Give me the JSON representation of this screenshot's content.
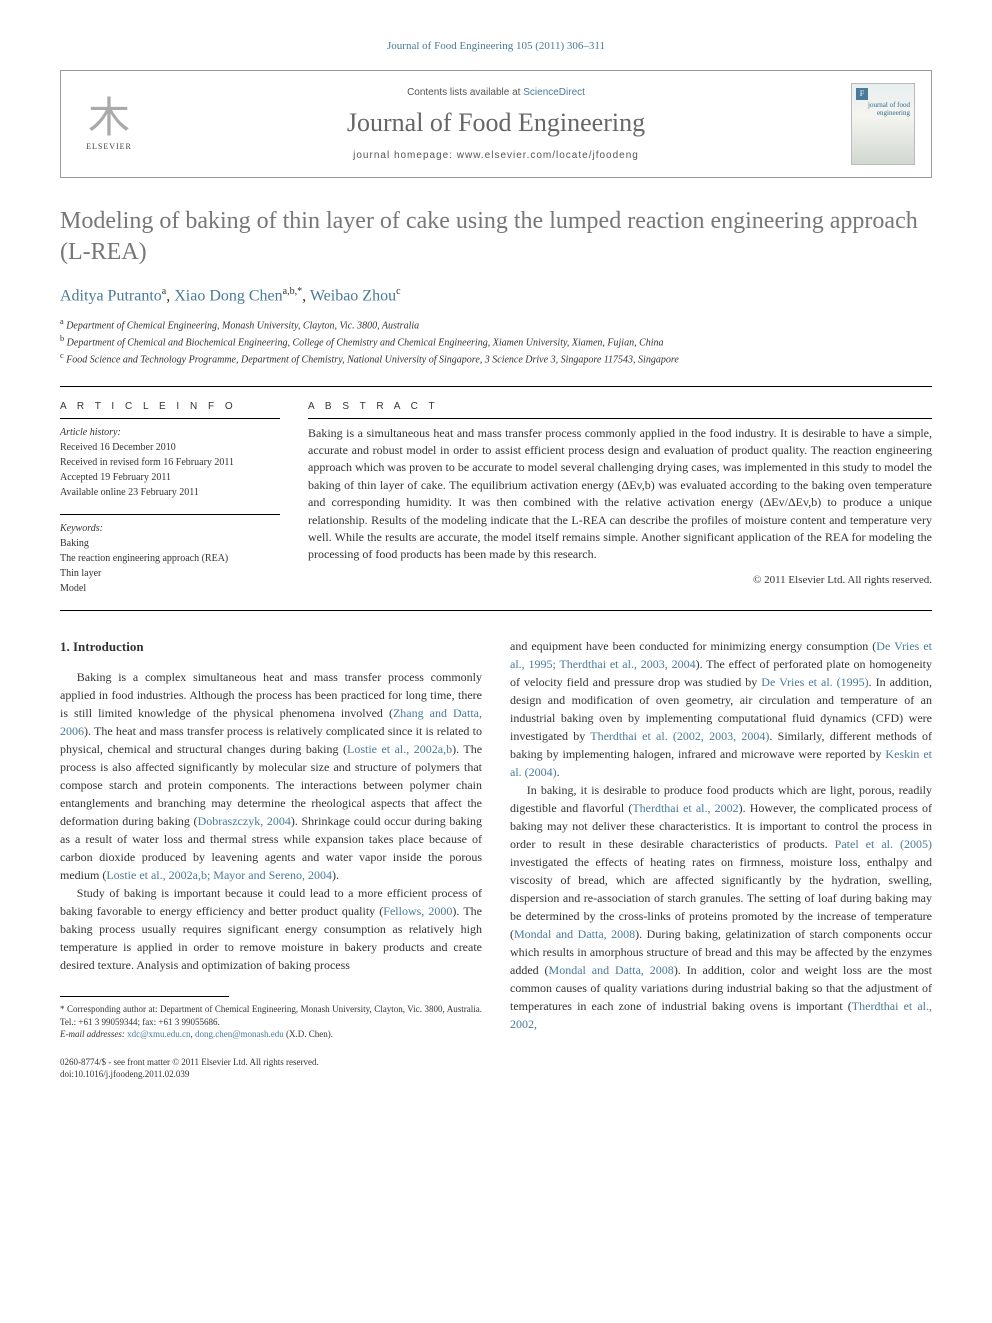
{
  "colors": {
    "link": "#4a7a9a",
    "title_gray": "#777777",
    "text": "#333333",
    "rule": "#000000",
    "box_border": "#999999",
    "background": "#ffffff"
  },
  "typography": {
    "body_font": "Georgia, 'Times New Roman', serif",
    "sans_font": "Arial, sans-serif",
    "title_fontsize": 24,
    "journal_name_fontsize": 26,
    "body_fontsize": 12,
    "small_fontsize": 10,
    "tiny_fontsize": 9
  },
  "header": {
    "citation": "Journal of Food Engineering 105 (2011) 306–311"
  },
  "journal_box": {
    "publisher": "ELSEVIER",
    "contents_prefix": "Contents lists available at ",
    "contents_link": "ScienceDirect",
    "journal_name": "Journal of Food Engineering",
    "homepage_prefix": "journal homepage: ",
    "homepage_url": "www.elsevier.com/locate/jfoodeng",
    "cover_badge": "F",
    "cover_title": "journal of food engineering"
  },
  "article": {
    "title": "Modeling of baking of thin layer of cake using the lumped reaction engineering approach (L-REA)",
    "authors": [
      {
        "name": "Aditya Putranto",
        "affil": "a"
      },
      {
        "name": "Xiao Dong Chen",
        "affil": "a,b,",
        "corresponding": true
      },
      {
        "name": "Weibao Zhou",
        "affil": "c"
      }
    ],
    "affiliations": [
      {
        "marker": "a",
        "text": "Department of Chemical Engineering, Monash University, Clayton, Vic. 3800, Australia"
      },
      {
        "marker": "b",
        "text": "Department of Chemical and Biochemical Engineering, College of Chemistry and Chemical Engineering, Xiamen University, Xiamen, Fujian, China"
      },
      {
        "marker": "c",
        "text": "Food Science and Technology Programme, Department of Chemistry, National University of Singapore, 3 Science Drive 3, Singapore 117543, Singapore"
      }
    ]
  },
  "info": {
    "info_heading": "A R T I C L E   I N F O",
    "abstract_heading": "A B S T R A C T",
    "history_label": "Article history:",
    "history": [
      "Received 16 December 2010",
      "Received in revised form 16 February 2011",
      "Accepted 19 February 2011",
      "Available online 23 February 2011"
    ],
    "keywords_label": "Keywords:",
    "keywords": [
      "Baking",
      "The reaction engineering approach (REA)",
      "Thin layer",
      "Model"
    ]
  },
  "abstract": {
    "text": "Baking is a simultaneous heat and mass transfer process commonly applied in the food industry. It is desirable to have a simple, accurate and robust model in order to assist efficient process design and evaluation of product quality. The reaction engineering approach which was proven to be accurate to model several challenging drying cases, was implemented in this study to model the baking of thin layer of cake. The equilibrium activation energy (ΔEv,b) was evaluated according to the baking oven temperature and corresponding humidity. It was then combined with the relative activation energy (ΔEv/ΔEv,b) to produce a unique relationship. Results of the modeling indicate that the L-REA can describe the profiles of moisture content and temperature very well. While the results are accurate, the model itself remains simple. Another significant application of the REA for modeling the processing of food products has been made by this research.",
    "copyright": "© 2011 Elsevier Ltd. All rights reserved."
  },
  "body": {
    "section_heading": "1. Introduction",
    "col1_p1_pre": "Baking is a complex simultaneous heat and mass transfer process commonly applied in food industries. Although the process has been practiced for long time, there is still limited knowledge of the physical phenomena involved (",
    "col1_p1_ref1": "Zhang and Datta, 2006",
    "col1_p1_mid1": "). The heat and mass transfer process is relatively complicated since it is related to physical, chemical and structural changes during baking (",
    "col1_p1_ref2": "Lostie et al., 2002a,b",
    "col1_p1_mid2": "). The process is also affected significantly by molecular size and structure of polymers that compose starch and protein components. The interactions between polymer chain entanglements and branching may determine the rheological aspects that affect the deformation during baking (",
    "col1_p1_ref3": "Dobraszczyk, 2004",
    "col1_p1_mid3": "). Shrinkage could occur during baking as a result of water loss and thermal stress while expansion takes place because of carbon dioxide produced by leavening agents and water vapor inside the porous medium (",
    "col1_p1_ref4": "Lostie et al., 2002a,b; Mayor and Sereno, 2004",
    "col1_p1_post": ").",
    "col1_p2_pre": "Study of baking is important because it could lead to a more efficient process of baking favorable to energy efficiency and better product quality (",
    "col1_p2_ref1": "Fellows, 2000",
    "col1_p2_post": "). The baking process usually requires significant energy consumption as relatively high temperature is applied in order to remove moisture in bakery products and create desired texture. Analysis and optimization of baking process",
    "col2_p1_pre": "and equipment have been conducted for minimizing energy consumption (",
    "col2_p1_ref1": "De Vries et al., 1995; Therdthai et al., 2003, 2004",
    "col2_p1_mid1": "). The effect of perforated plate on homogeneity of velocity field and pressure drop was studied by ",
    "col2_p1_ref2": "De Vries et al. (1995)",
    "col2_p1_mid2": ". In addition, design and modification of oven geometry, air circulation and temperature of an industrial baking oven by implementing computational fluid dynamics (CFD) were investigated by ",
    "col2_p1_ref3": "Therdthai et al. (2002, 2003, 2004)",
    "col2_p1_mid3": ". Similarly, different methods of baking by implementing halogen, infrared and microwave were reported by ",
    "col2_p1_ref4": "Keskin et al. (2004)",
    "col2_p1_post": ".",
    "col2_p2_pre": "In baking, it is desirable to produce food products which are light, porous, readily digestible and flavorful (",
    "col2_p2_ref1": "Therdthai et al., 2002",
    "col2_p2_mid1": "). However, the complicated process of baking may not deliver these characteristics. It is important to control the process in order to result in these desirable characteristics of products. ",
    "col2_p2_ref2": "Patel et al. (2005)",
    "col2_p2_mid2": " investigated the effects of heating rates on firmness, moisture loss, enthalpy and viscosity of bread, which are affected significantly by the hydration, swelling, dispersion and re-association of starch granules. The setting of loaf during baking may be determined by the cross-links of proteins promoted by the increase of temperature (",
    "col2_p2_ref3": "Mondal and Datta, 2008",
    "col2_p2_mid3": "). During baking, gelatinization of starch components occur which results in amorphous structure of bread and this may be affected by the enzymes added (",
    "col2_p2_ref4": "Mondal and Datta, 2008",
    "col2_p2_mid4": "). In addition, color and weight loss are the most common causes of quality variations during industrial baking so that the adjustment of temperatures in each zone of industrial baking ovens is important (",
    "col2_p2_ref5": "Therdthai et al., 2002,",
    "col2_p2_post": ""
  },
  "footnote": {
    "corr_label": "* Corresponding author at: Department of Chemical Engineering, Monash University, Clayton, Vic. 3800, Australia. Tel.: +61 3 99059344; fax: +61 3 99055686.",
    "email_label": "E-mail addresses:",
    "email1": "xdc@xmu.edu.cn",
    "email_sep": ", ",
    "email2": "dong.chen@monash.edu",
    "email_who": " (X.D. Chen)."
  },
  "bottom": {
    "issn": "0260-8774/$ - see front matter © 2011 Elsevier Ltd. All rights reserved.",
    "doi": "doi:10.1016/j.jfoodeng.2011.02.039"
  }
}
